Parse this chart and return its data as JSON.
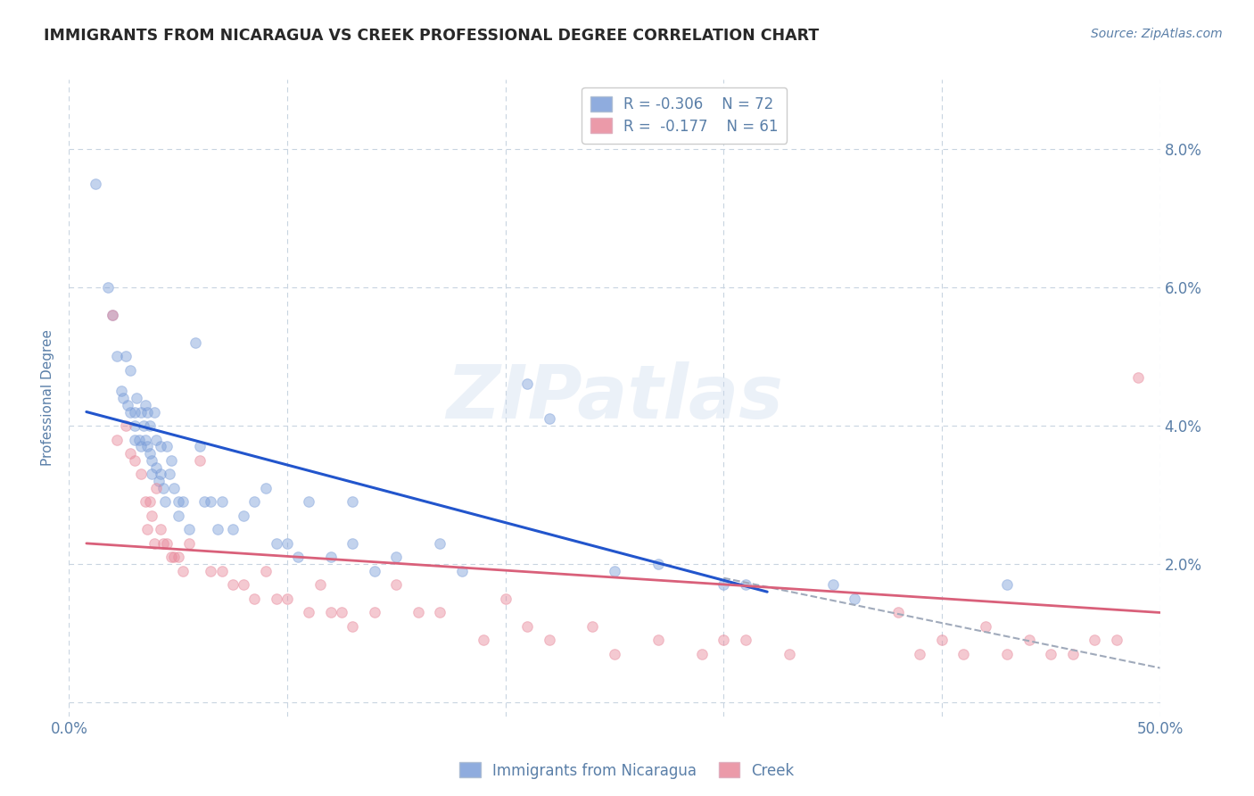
{
  "title": "IMMIGRANTS FROM NICARAGUA VS CREEK PROFESSIONAL DEGREE CORRELATION CHART",
  "source": "Source: ZipAtlas.com",
  "ylabel": "Professional Degree",
  "xlim": [
    0.0,
    0.5
  ],
  "ylim": [
    -0.002,
    0.09
  ],
  "x_ticks": [
    0.0,
    0.1,
    0.2,
    0.3,
    0.4,
    0.5
  ],
  "x_tick_labels": [
    "0.0%",
    "",
    "",
    "",
    "",
    "50.0%"
  ],
  "y_ticks": [
    0.0,
    0.02,
    0.04,
    0.06,
    0.08
  ],
  "y_tick_labels_right": [
    "",
    "2.0%",
    "4.0%",
    "6.0%",
    "8.0%"
  ],
  "legend_blue_label": "Immigrants from Nicaragua",
  "legend_pink_label": "Creek",
  "legend_blue_r": "R = -0.306",
  "legend_blue_n": "N = 72",
  "legend_pink_r": "R =  -0.177",
  "legend_pink_n": "N = 61",
  "blue_color": "#7B9ED9",
  "pink_color": "#E8889A",
  "blue_line_color": "#2255CC",
  "pink_line_color": "#D9607A",
  "dashed_line_color": "#A0AABB",
  "watermark_text": "ZIPatlas",
  "blue_scatter_x": [
    0.012,
    0.018,
    0.02,
    0.022,
    0.024,
    0.025,
    0.026,
    0.027,
    0.028,
    0.028,
    0.03,
    0.03,
    0.03,
    0.031,
    0.032,
    0.033,
    0.033,
    0.034,
    0.035,
    0.035,
    0.036,
    0.036,
    0.037,
    0.037,
    0.038,
    0.038,
    0.039,
    0.04,
    0.04,
    0.041,
    0.042,
    0.042,
    0.043,
    0.044,
    0.045,
    0.046,
    0.047,
    0.048,
    0.05,
    0.05,
    0.052,
    0.055,
    0.058,
    0.06,
    0.062,
    0.065,
    0.068,
    0.07,
    0.075,
    0.08,
    0.085,
    0.09,
    0.095,
    0.1,
    0.105,
    0.11,
    0.12,
    0.13,
    0.14,
    0.15,
    0.17,
    0.18,
    0.21,
    0.22,
    0.27,
    0.3,
    0.31,
    0.35,
    0.36,
    0.43,
    0.25,
    0.13
  ],
  "blue_scatter_y": [
    0.075,
    0.06,
    0.056,
    0.05,
    0.045,
    0.044,
    0.05,
    0.043,
    0.048,
    0.042,
    0.042,
    0.04,
    0.038,
    0.044,
    0.038,
    0.042,
    0.037,
    0.04,
    0.043,
    0.038,
    0.042,
    0.037,
    0.04,
    0.036,
    0.035,
    0.033,
    0.042,
    0.038,
    0.034,
    0.032,
    0.037,
    0.033,
    0.031,
    0.029,
    0.037,
    0.033,
    0.035,
    0.031,
    0.029,
    0.027,
    0.029,
    0.025,
    0.052,
    0.037,
    0.029,
    0.029,
    0.025,
    0.029,
    0.025,
    0.027,
    0.029,
    0.031,
    0.023,
    0.023,
    0.021,
    0.029,
    0.021,
    0.023,
    0.019,
    0.021,
    0.023,
    0.019,
    0.046,
    0.041,
    0.02,
    0.017,
    0.017,
    0.017,
    0.015,
    0.017,
    0.019,
    0.029
  ],
  "pink_scatter_x": [
    0.02,
    0.022,
    0.026,
    0.028,
    0.03,
    0.033,
    0.035,
    0.036,
    0.037,
    0.038,
    0.039,
    0.04,
    0.042,
    0.043,
    0.045,
    0.047,
    0.048,
    0.05,
    0.052,
    0.055,
    0.06,
    0.065,
    0.07,
    0.075,
    0.08,
    0.085,
    0.09,
    0.095,
    0.1,
    0.11,
    0.115,
    0.12,
    0.125,
    0.13,
    0.14,
    0.15,
    0.16,
    0.17,
    0.19,
    0.2,
    0.21,
    0.22,
    0.24,
    0.25,
    0.27,
    0.29,
    0.3,
    0.31,
    0.33,
    0.38,
    0.39,
    0.4,
    0.41,
    0.42,
    0.43,
    0.44,
    0.45,
    0.46,
    0.47,
    0.48,
    0.49
  ],
  "pink_scatter_y": [
    0.056,
    0.038,
    0.04,
    0.036,
    0.035,
    0.033,
    0.029,
    0.025,
    0.029,
    0.027,
    0.023,
    0.031,
    0.025,
    0.023,
    0.023,
    0.021,
    0.021,
    0.021,
    0.019,
    0.023,
    0.035,
    0.019,
    0.019,
    0.017,
    0.017,
    0.015,
    0.019,
    0.015,
    0.015,
    0.013,
    0.017,
    0.013,
    0.013,
    0.011,
    0.013,
    0.017,
    0.013,
    0.013,
    0.009,
    0.015,
    0.011,
    0.009,
    0.011,
    0.007,
    0.009,
    0.007,
    0.009,
    0.009,
    0.007,
    0.013,
    0.007,
    0.009,
    0.007,
    0.011,
    0.007,
    0.009,
    0.007,
    0.007,
    0.009,
    0.009,
    0.047
  ],
  "blue_trend_x": [
    0.008,
    0.32
  ],
  "blue_trend_y": [
    0.042,
    0.016
  ],
  "pink_trend_x": [
    0.008,
    0.5
  ],
  "pink_trend_y": [
    0.023,
    0.013
  ],
  "dashed_trend_x": [
    0.3,
    0.5
  ],
  "dashed_trend_y": [
    0.018,
    0.005
  ],
  "bg_color": "#FFFFFF",
  "grid_color": "#C8D4E0",
  "title_color": "#282828",
  "axis_label_color": "#5A7FA8",
  "watermark_color": "#C8D8EC",
  "marker_size": 70,
  "marker_alpha": 0.45,
  "marker_edge_alpha": 0.7,
  "title_fontsize": 12.5,
  "source_fontsize": 10,
  "tick_fontsize": 12,
  "ylabel_fontsize": 11,
  "legend_fontsize": 12,
  "watermark_fontsize": 60,
  "watermark_alpha": 0.35
}
